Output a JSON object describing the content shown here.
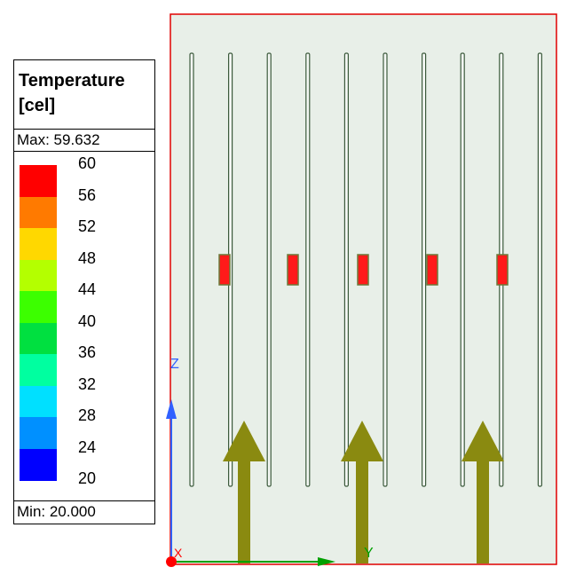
{
  "legend": {
    "title_line1": "Temperature",
    "title_line2": "[cel]",
    "max_label": "Max: 59.632",
    "min_label": "Min: 20.000",
    "ticks": [
      "60",
      "56",
      "52",
      "48",
      "44",
      "40",
      "36",
      "32",
      "28",
      "24",
      "20"
    ],
    "colors": [
      "#ff0000",
      "#ff7a00",
      "#ffd800",
      "#b4ff00",
      "#3cff00",
      "#00e040",
      "#00ffa0",
      "#00e0ff",
      "#0090ff",
      "#0000ff"
    ]
  },
  "axes": {
    "z_label": "Z",
    "y_label": "Y",
    "x_label": "X",
    "z_color": "#3060ff",
    "y_color": "#00a000",
    "x_color": "#ff0000"
  },
  "scene": {
    "frame_color": "#e00000",
    "board_color": "#e8efe8",
    "fin_color": "#3c5a3c",
    "chip_color": "#ff1a1a",
    "arrow_color": "#8a8a10"
  }
}
